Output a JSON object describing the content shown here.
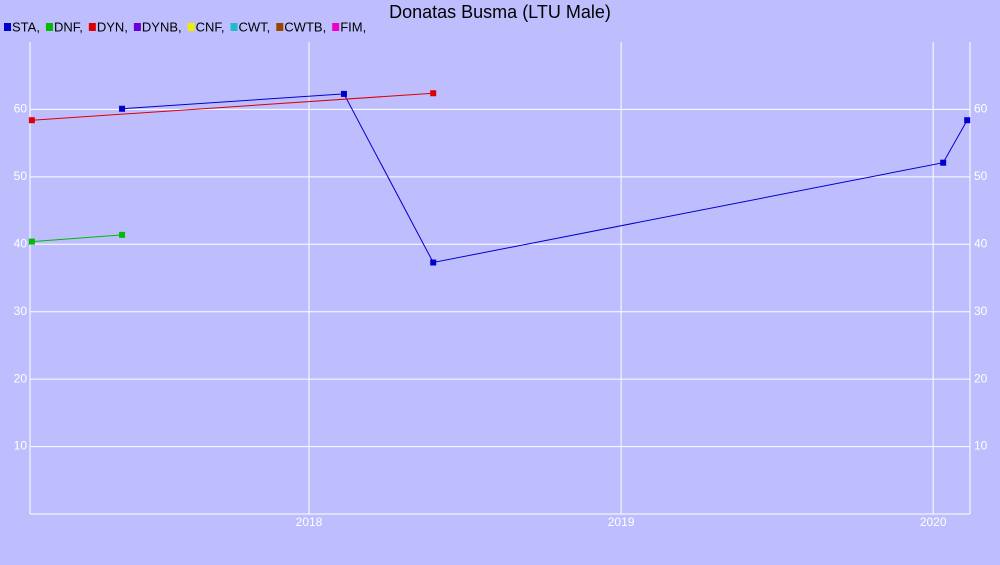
{
  "chart_data": {
    "type": "line",
    "title": "Donatas Busma (LTU Male)",
    "xlim": [
      2017.106,
      2020.118
    ],
    "xticks": [
      2018,
      2019,
      2020
    ],
    "ylim": [
      0,
      70
    ],
    "yticks": [
      10,
      20,
      30,
      40,
      50,
      60
    ],
    "grid": true,
    "series": [
      {
        "name": "STA,",
        "color": "#0000cc",
        "x": [
          2017.401,
          2018.112,
          2018.398,
          2020.032,
          2020.109
        ],
        "values": [
          60.1,
          62.3,
          37.3,
          52.1,
          58.4
        ]
      },
      {
        "name": "DNF,",
        "color": "#00bb00",
        "x": [
          2017.112,
          2017.401
        ],
        "values": [
          40.4,
          41.4
        ]
      },
      {
        "name": "DYN,",
        "color": "#dd0000",
        "x": [
          2017.112,
          2018.398
        ],
        "values": [
          58.4,
          62.4
        ]
      },
      {
        "name": "DYNB,",
        "color": "#6600dd",
        "x": [],
        "values": []
      },
      {
        "name": "CNF,",
        "color": "#eeee00",
        "x": [],
        "values": []
      },
      {
        "name": "CWT,",
        "color": "#22bbcc",
        "x": [],
        "values": []
      },
      {
        "name": "CWTB,",
        "color": "#994400",
        "x": [],
        "values": []
      },
      {
        "name": "FIM,",
        "color": "#ee00cc",
        "x": [],
        "values": []
      }
    ]
  }
}
